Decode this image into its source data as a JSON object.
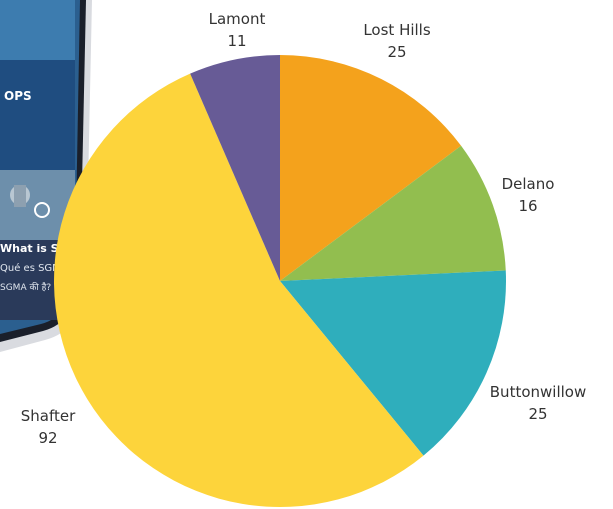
{
  "chart_data": {
    "type": "pie",
    "slices": [
      {
        "label": "Lost Hills",
        "value": 25,
        "color": "#F4A21C"
      },
      {
        "label": "Delano",
        "value": 16,
        "color": "#92BE4F"
      },
      {
        "label": "Buttonwillow",
        "value": 25,
        "color": "#2FAEBC"
      },
      {
        "label": "Shafter",
        "value": 92,
        "color": "#FDD43B"
      },
      {
        "label": "Lamont",
        "value": 11,
        "color": "#675B96"
      }
    ],
    "start_angle_deg": 0,
    "direction": "clockwise",
    "legend": "none"
  },
  "background": {
    "device_image": "tablet-with-SGMA-webpage",
    "texts": [
      "What is SGMA",
      "Qué es SGMA",
      "SGMA की है?",
      "OPS"
    ]
  }
}
